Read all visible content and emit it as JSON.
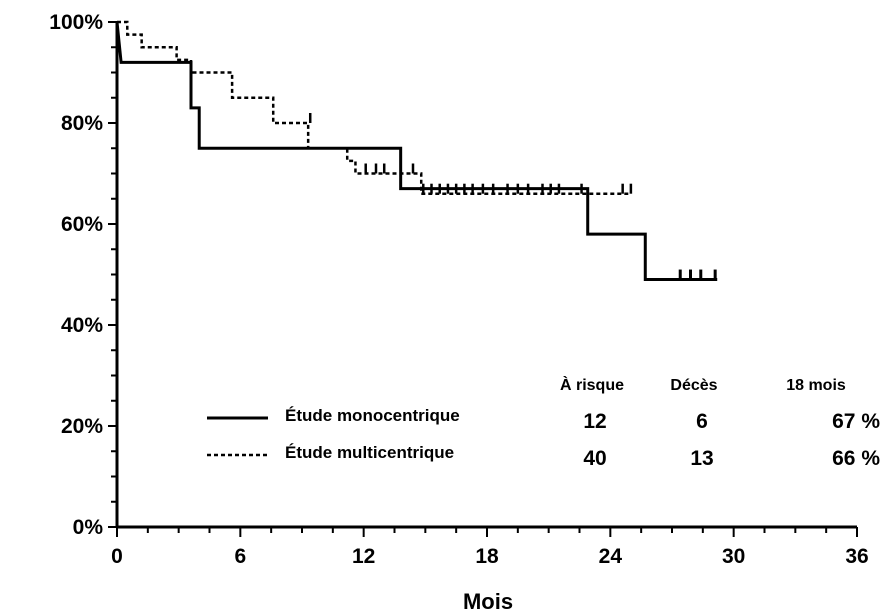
{
  "chart_data": {
    "type": "line",
    "title": "",
    "xlabel": "Mois",
    "ylabel": "",
    "xlim": [
      0,
      36
    ],
    "ylim": [
      0,
      100
    ],
    "x_ticks": [
      0,
      6,
      12,
      18,
      24,
      30,
      36
    ],
    "x_tick_labels": [
      "0",
      "6",
      "12",
      "18",
      "24",
      "30",
      "36"
    ],
    "y_ticks": [
      0,
      20,
      40,
      60,
      80,
      100
    ],
    "y_tick_labels": [
      "0%",
      "20%",
      "40%",
      "60%",
      "80%",
      "100%"
    ],
    "grid": false,
    "series": [
      {
        "name": "Étude monocentrique",
        "style": "solid",
        "color": "#000000",
        "steps": [
          [
            0,
            100
          ],
          [
            0.2,
            92
          ],
          [
            3.6,
            92
          ],
          [
            3.6,
            83
          ],
          [
            4,
            83
          ],
          [
            4,
            75
          ],
          [
            13.8,
            75
          ],
          [
            13.8,
            67
          ],
          [
            22.9,
            67
          ],
          [
            22.9,
            58
          ],
          [
            25.7,
            58
          ],
          [
            25.7,
            49
          ],
          [
            29.2,
            49
          ]
        ],
        "censored": [
          [
            27.4,
            49
          ],
          [
            27.9,
            49
          ],
          [
            28.4,
            49
          ],
          [
            29.1,
            49
          ]
        ]
      },
      {
        "name": "Étude multicentrique",
        "style": "dotted",
        "color": "#000000",
        "steps": [
          [
            0,
            100
          ],
          [
            0.5,
            100
          ],
          [
            0.5,
            97.5
          ],
          [
            1.2,
            97.5
          ],
          [
            1.2,
            95
          ],
          [
            2.9,
            95
          ],
          [
            2.9,
            92.5
          ],
          [
            3.6,
            92.5
          ],
          [
            3.6,
            90
          ],
          [
            5.6,
            90
          ],
          [
            5.6,
            85
          ],
          [
            7.6,
            85
          ],
          [
            7.6,
            80
          ],
          [
            9.3,
            80
          ],
          [
            9.3,
            75
          ],
          [
            11.2,
            75
          ],
          [
            11.2,
            72.5
          ],
          [
            11.6,
            72.5
          ],
          [
            11.6,
            70
          ],
          [
            14.8,
            70
          ],
          [
            14.8,
            66
          ],
          [
            25,
            66
          ]
        ],
        "censored": [
          [
            9.4,
            80
          ],
          [
            12.1,
            70
          ],
          [
            12.6,
            70
          ],
          [
            13,
            70
          ],
          [
            14.4,
            70
          ],
          [
            14.9,
            66
          ],
          [
            15.3,
            66
          ],
          [
            15.7,
            66
          ],
          [
            16.1,
            66
          ],
          [
            16.5,
            66
          ],
          [
            16.9,
            66
          ],
          [
            17.3,
            66
          ],
          [
            17.8,
            66
          ],
          [
            18.3,
            66
          ],
          [
            19,
            66
          ],
          [
            19.5,
            66
          ],
          [
            20,
            66
          ],
          [
            20.7,
            66
          ],
          [
            21.1,
            66
          ],
          [
            21.5,
            66
          ],
          [
            22.6,
            66
          ],
          [
            24.6,
            66
          ],
          [
            25,
            66
          ]
        ]
      }
    ],
    "table": {
      "headers": [
        "À risque",
        "Décès",
        "18 mois"
      ],
      "rows": [
        {
          "label": "Étude monocentrique",
          "style": "solid",
          "values": [
            "12",
            "6",
            "67 %"
          ]
        },
        {
          "label": "Étude multicentrique",
          "style": "dotted",
          "values": [
            "40",
            "13",
            "66 %"
          ]
        }
      ]
    }
  }
}
